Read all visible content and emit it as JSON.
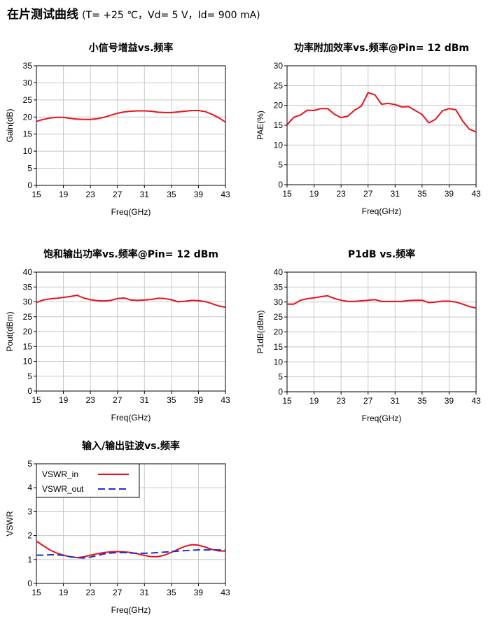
{
  "header": {
    "title": "在片测试曲线",
    "conditions": "(T= +25 ℃，Vd= 5 V，Id= 900 mA)"
  },
  "chart_data": [
    {
      "type": "line",
      "title": "小信号增益vs.频率",
      "xlabel": "Freq(GHz)",
      "ylabel": "Gain(dB)",
      "xlim": [
        15,
        43
      ],
      "ylim": [
        0,
        35
      ],
      "xticks": [
        15,
        19,
        23,
        27,
        31,
        35,
        39,
        43
      ],
      "yticks": [
        0,
        5,
        10,
        15,
        20,
        25,
        30,
        35
      ],
      "grid": true,
      "series": [
        {
          "color": "#e8111b",
          "x": [
            15,
            16,
            17,
            18,
            19,
            20,
            21,
            22,
            23,
            24,
            25,
            26,
            27,
            28,
            29,
            30,
            31,
            32,
            33,
            34,
            35,
            36,
            37,
            38,
            39,
            40,
            41,
            42,
            43
          ],
          "y": [
            18.7,
            19.3,
            19.7,
            19.9,
            19.9,
            19.6,
            19.4,
            19.3,
            19.3,
            19.5,
            19.9,
            20.5,
            21.1,
            21.5,
            21.7,
            21.8,
            21.8,
            21.7,
            21.4,
            21.3,
            21.3,
            21.5,
            21.7,
            21.9,
            21.9,
            21.6,
            20.8,
            19.8,
            18.5
          ]
        }
      ]
    },
    {
      "type": "line",
      "title": "功率附加效率vs.频率@Pin= 12 dBm",
      "xlabel": "Freq(GHz)",
      "ylabel": "PAE(%)",
      "xlim": [
        15,
        43
      ],
      "ylim": [
        0,
        30
      ],
      "xticks": [
        15,
        19,
        23,
        27,
        31,
        35,
        39,
        43
      ],
      "yticks": [
        0,
        5,
        10,
        15,
        20,
        25,
        30
      ],
      "grid": true,
      "series": [
        {
          "color": "#e8111b",
          "x": [
            15,
            16,
            17,
            18,
            19,
            20,
            21,
            22,
            23,
            24,
            25,
            26,
            27,
            28,
            29,
            30,
            31,
            32,
            33,
            34,
            35,
            36,
            37,
            38,
            39,
            40,
            41,
            42,
            43
          ],
          "y": [
            15.1,
            17.0,
            17.6,
            18.8,
            18.7,
            19.2,
            19.2,
            17.8,
            16.9,
            17.3,
            18.8,
            19.8,
            23.2,
            22.7,
            20.3,
            20.5,
            20.2,
            19.6,
            19.7,
            18.7,
            17.7,
            15.6,
            16.5,
            18.6,
            19.2,
            18.9,
            16.1,
            14.0,
            13.3
          ]
        }
      ]
    },
    {
      "type": "line",
      "title": "饱和输出功率vs.频率@Pin= 12 dBm",
      "xlabel": "Freq(GHz)",
      "ylabel": "Pout(dBm)",
      "xlim": [
        15,
        43
      ],
      "ylim": [
        0,
        40
      ],
      "xticks": [
        15,
        19,
        23,
        27,
        31,
        35,
        39,
        43
      ],
      "yticks": [
        0,
        5,
        10,
        15,
        20,
        25,
        30,
        35,
        40
      ],
      "grid": true,
      "series": [
        {
          "color": "#e8111b",
          "x": [
            15,
            16,
            17,
            18,
            19,
            20,
            21,
            22,
            23,
            24,
            25,
            26,
            27,
            28,
            29,
            30,
            31,
            32,
            33,
            34,
            35,
            36,
            37,
            38,
            39,
            40,
            41,
            42,
            43
          ],
          "y": [
            29.8,
            30.6,
            31.0,
            31.2,
            31.5,
            31.8,
            32.2,
            31.3,
            30.7,
            30.4,
            30.3,
            30.5,
            31.1,
            31.3,
            30.6,
            30.5,
            30.6,
            30.8,
            31.2,
            31.1,
            30.7,
            30.0,
            30.2,
            30.5,
            30.4,
            30.1,
            29.4,
            28.6,
            28.2
          ]
        }
      ]
    },
    {
      "type": "line",
      "title": "P1dB vs.频率",
      "xlabel": "Freq(GHz)",
      "ylabel": "P1dB(dBm)",
      "xlim": [
        15,
        43
      ],
      "ylim": [
        0,
        40
      ],
      "xticks": [
        15,
        19,
        23,
        27,
        31,
        35,
        39,
        43
      ],
      "yticks": [
        0,
        5,
        10,
        15,
        20,
        25,
        30,
        35,
        40
      ],
      "grid": true,
      "series": [
        {
          "color": "#e8111b",
          "x": [
            15,
            16,
            17,
            18,
            19,
            20,
            21,
            22,
            23,
            24,
            25,
            26,
            27,
            28,
            29,
            30,
            31,
            32,
            33,
            34,
            35,
            36,
            37,
            38,
            39,
            40,
            41,
            42,
            43
          ],
          "y": [
            29.3,
            29.3,
            30.6,
            31.1,
            31.4,
            31.8,
            32.1,
            31.2,
            30.6,
            30.2,
            30.2,
            30.4,
            30.6,
            30.8,
            30.2,
            30.2,
            30.2,
            30.2,
            30.5,
            30.6,
            30.6,
            29.8,
            30.0,
            30.3,
            30.3,
            30.0,
            29.3,
            28.5,
            28.0
          ]
        }
      ]
    },
    {
      "type": "line",
      "title": "输入/输出驻波vs.频率",
      "xlabel": "Freq(GHz)",
      "ylabel": "VSWR",
      "xlim": [
        15,
        43
      ],
      "ylim": [
        0,
        5
      ],
      "xticks": [
        15,
        19,
        23,
        27,
        31,
        35,
        39,
        43
      ],
      "yticks": [
        0,
        1,
        2,
        3,
        4,
        5
      ],
      "grid": true,
      "legend": "top-left",
      "series": [
        {
          "name": "VSWR_in",
          "color": "#e8111b",
          "dash": "",
          "x": [
            15,
            16,
            17,
            18,
            19,
            20,
            21,
            22,
            23,
            24,
            25,
            26,
            27,
            28,
            29,
            30,
            31,
            32,
            33,
            34,
            35,
            36,
            37,
            38,
            39,
            40,
            41,
            42,
            43
          ],
          "y": [
            1.77,
            1.58,
            1.4,
            1.27,
            1.18,
            1.11,
            1.08,
            1.11,
            1.18,
            1.24,
            1.29,
            1.32,
            1.33,
            1.32,
            1.29,
            1.24,
            1.17,
            1.12,
            1.12,
            1.18,
            1.3,
            1.43,
            1.55,
            1.62,
            1.6,
            1.52,
            1.42,
            1.36,
            1.35
          ]
        },
        {
          "name": "VSWR_out",
          "color": "#1530d6",
          "dash": "10,5",
          "x": [
            15,
            16,
            17,
            18,
            19,
            20,
            21,
            22,
            23,
            24,
            25,
            26,
            27,
            28,
            29,
            30,
            31,
            32,
            33,
            34,
            35,
            36,
            37,
            38,
            39,
            40,
            41,
            42,
            43
          ],
          "y": [
            1.18,
            1.18,
            1.2,
            1.2,
            1.17,
            1.12,
            1.08,
            1.06,
            1.1,
            1.17,
            1.23,
            1.27,
            1.29,
            1.29,
            1.27,
            1.26,
            1.26,
            1.27,
            1.29,
            1.31,
            1.33,
            1.35,
            1.37,
            1.39,
            1.4,
            1.4,
            1.4,
            1.4,
            1.4
          ]
        }
      ]
    }
  ]
}
